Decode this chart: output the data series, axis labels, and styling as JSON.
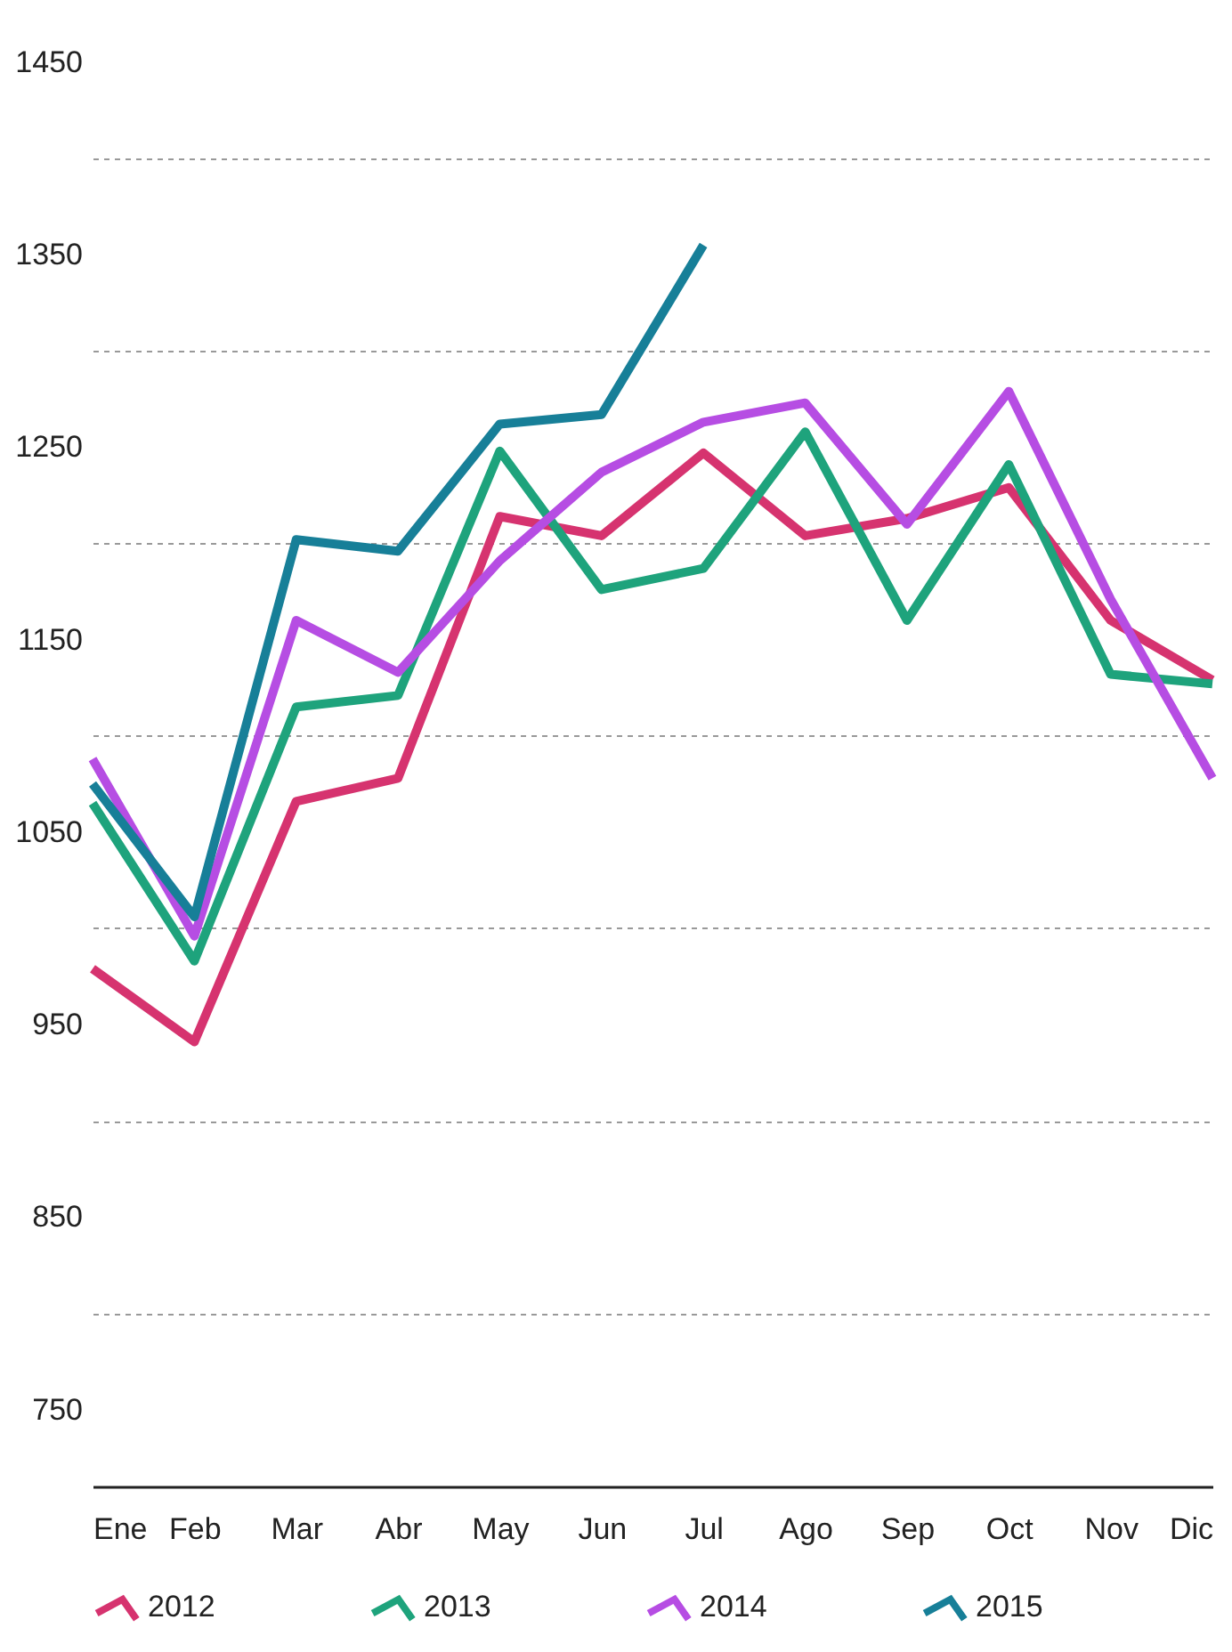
{
  "chart_data": {
    "type": "line",
    "categories": [
      "Ene",
      "Feb",
      "Mar",
      "Abr",
      "May",
      "Jun",
      "Jul",
      "Ago",
      "Sep",
      "Oct",
      "Nov",
      "Dic"
    ],
    "series": [
      {
        "name": "2012",
        "color": "#d6336f",
        "values": [
          979,
          941,
          1066,
          1078,
          1214,
          1204,
          1247,
          1204,
          1213,
          1229,
          1160,
          1129
        ]
      },
      {
        "name": "2013",
        "color": "#1ea37c",
        "values": [
          1065,
          983,
          1115,
          1121,
          1248,
          1176,
          1187,
          1258,
          1160,
          1241,
          1132,
          1127
        ]
      },
      {
        "name": "2014",
        "color": "#b64de3",
        "values": [
          1088,
          996,
          1160,
          1133,
          1191,
          1237,
          1263,
          1273,
          1210,
          1279,
          1171,
          1078
        ]
      },
      {
        "name": "2015",
        "color": "#177f98",
        "values": [
          1075,
          1006,
          1202,
          1196,
          1262,
          1267,
          1355,
          null,
          null,
          null,
          null,
          null
        ]
      }
    ],
    "ylim": [
      710,
      1450
    ],
    "yticks": [
      750,
      {
        "value": 800,
        "label": null
      },
      850,
      {
        "value": 900,
        "label": null
      },
      950,
      {
        "value": 1000,
        "label": null
      },
      1050,
      {
        "value": 1100,
        "label": null
      },
      1150,
      {
        "value": 1200,
        "label": null
      },
      1250,
      {
        "value": 1300,
        "label": null
      },
      1350,
      {
        "value": 1400,
        "label": null
      },
      1450
    ],
    "grid": "y",
    "legend": "bottom",
    "marker": "none",
    "line_style": "solid"
  }
}
